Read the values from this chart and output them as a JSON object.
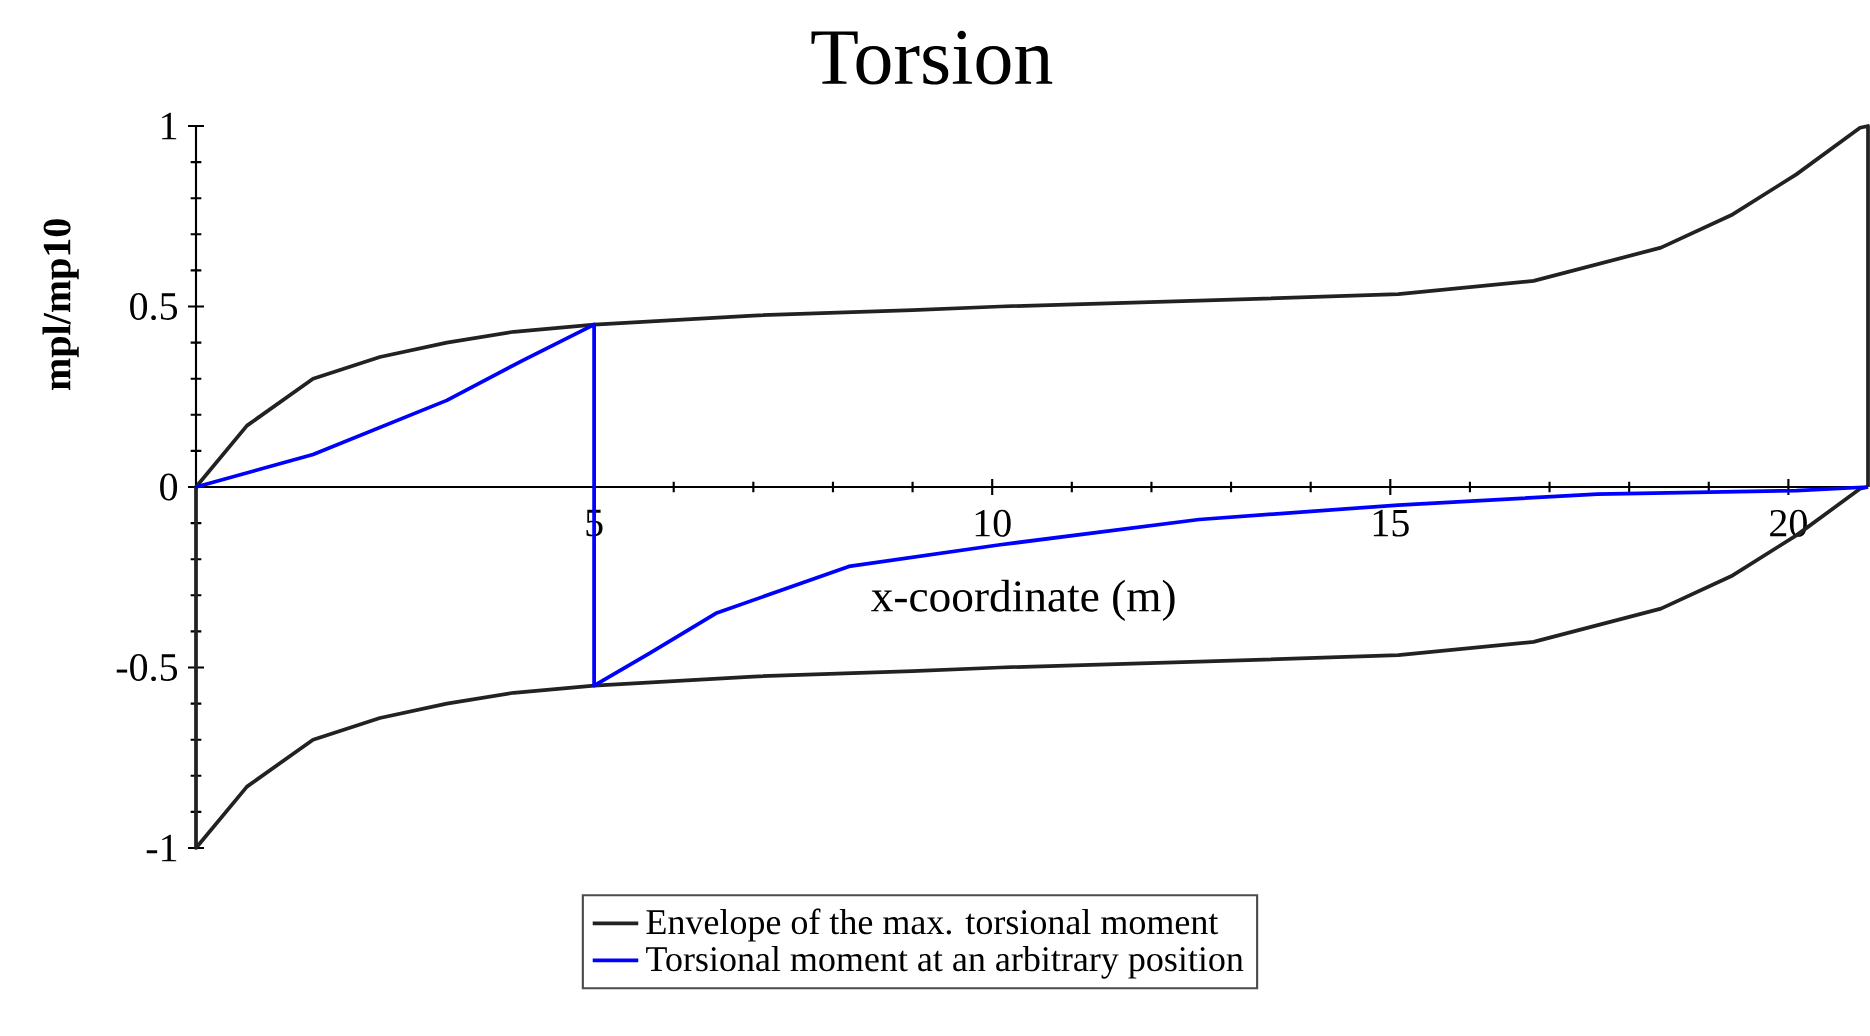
{
  "chart_data": {
    "type": "line",
    "title": "Torsion",
    "xlabel": "x-coordinate (m)",
    "ylabel": "mpl/mp10",
    "xlim": [
      0,
      21
    ],
    "ylim": [
      -1,
      1
    ],
    "xticks": [
      5,
      10,
      15,
      20
    ],
    "yticks": [
      -1,
      -0.5,
      0,
      0.5,
      1
    ],
    "legend": "bottom",
    "series": [
      {
        "name": "Envelope of the max. torsional moment",
        "color": "#222222",
        "x": [
          0,
          0.64,
          1.47,
          2.31,
          3.15,
          3.99,
          5,
          7,
          9,
          10.1,
          12.6,
          15.1,
          16.8,
          18.4,
          19.3,
          20.1,
          20.9,
          21,
          21
        ],
        "values": [
          0,
          0.17,
          0.3,
          0.36,
          0.4,
          0.43,
          0.45,
          0.475,
          0.49,
          0.5,
          0.516,
          0.534,
          0.571,
          0.663,
          0.755,
          0.866,
          0.995,
          1,
          0
        ]
      },
      {
        "color": "#222222",
        "x": [
          0,
          0,
          0.64,
          1.47,
          2.31,
          3.15,
          3.99,
          5,
          7,
          9,
          10.1,
          12.6,
          15.1,
          16.8,
          18.4,
          19.3,
          20.1,
          20.9,
          21
        ],
        "values": [
          0,
          -1,
          -0.83,
          -0.7,
          -0.64,
          -0.6,
          -0.57,
          -0.55,
          -0.525,
          -0.51,
          -0.5,
          -0.484,
          -0.466,
          -0.429,
          -0.337,
          -0.245,
          -0.134,
          -0.005,
          0
        ]
      },
      {
        "name": "Torsional moment at an arbitrary position",
        "color": "#0000ff",
        "x": [
          0,
          1.47,
          3.15,
          4.1,
          5,
          5,
          5.7,
          6.53,
          8.2,
          10.1,
          12.6,
          15.1,
          17.6,
          20.1,
          21
        ],
        "values": [
          0,
          0.09,
          0.24,
          0.35,
          0.45,
          -0.55,
          -0.46,
          -0.35,
          -0.22,
          -0.16,
          -0.09,
          -0.05,
          -0.02,
          -0.01,
          0
        ]
      }
    ]
  }
}
